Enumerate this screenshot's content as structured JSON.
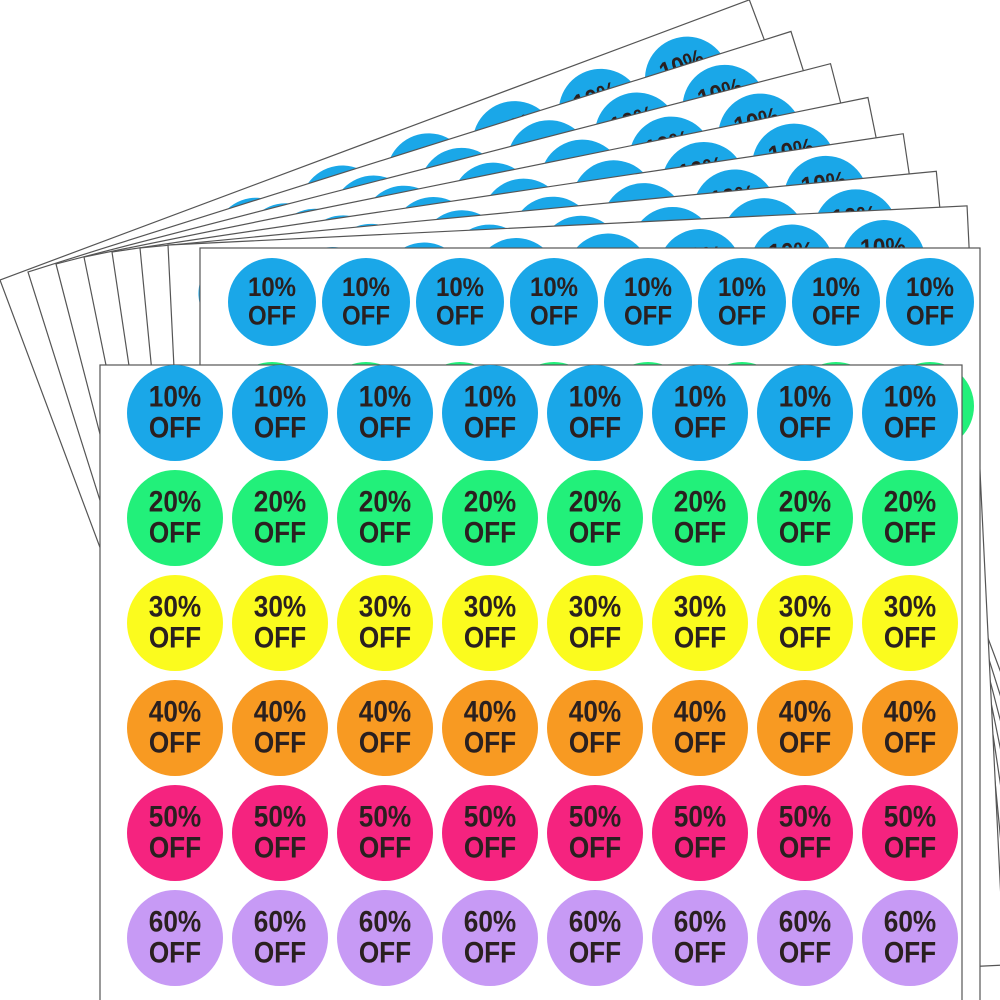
{
  "rows": [
    {
      "percent": "10%",
      "off": "OFF",
      "color": "#1aa7e8"
    },
    {
      "percent": "20%",
      "off": "OFF",
      "color": "#22f07a"
    },
    {
      "percent": "30%",
      "off": "OFF",
      "color": "#fbfb1e"
    },
    {
      "percent": "40%",
      "off": "OFF",
      "color": "#f89a22"
    },
    {
      "percent": "50%",
      "off": "OFF",
      "color": "#f5237f"
    },
    {
      "percent": "60%",
      "off": "OFF",
      "color": "#c79af5"
    }
  ]
}
